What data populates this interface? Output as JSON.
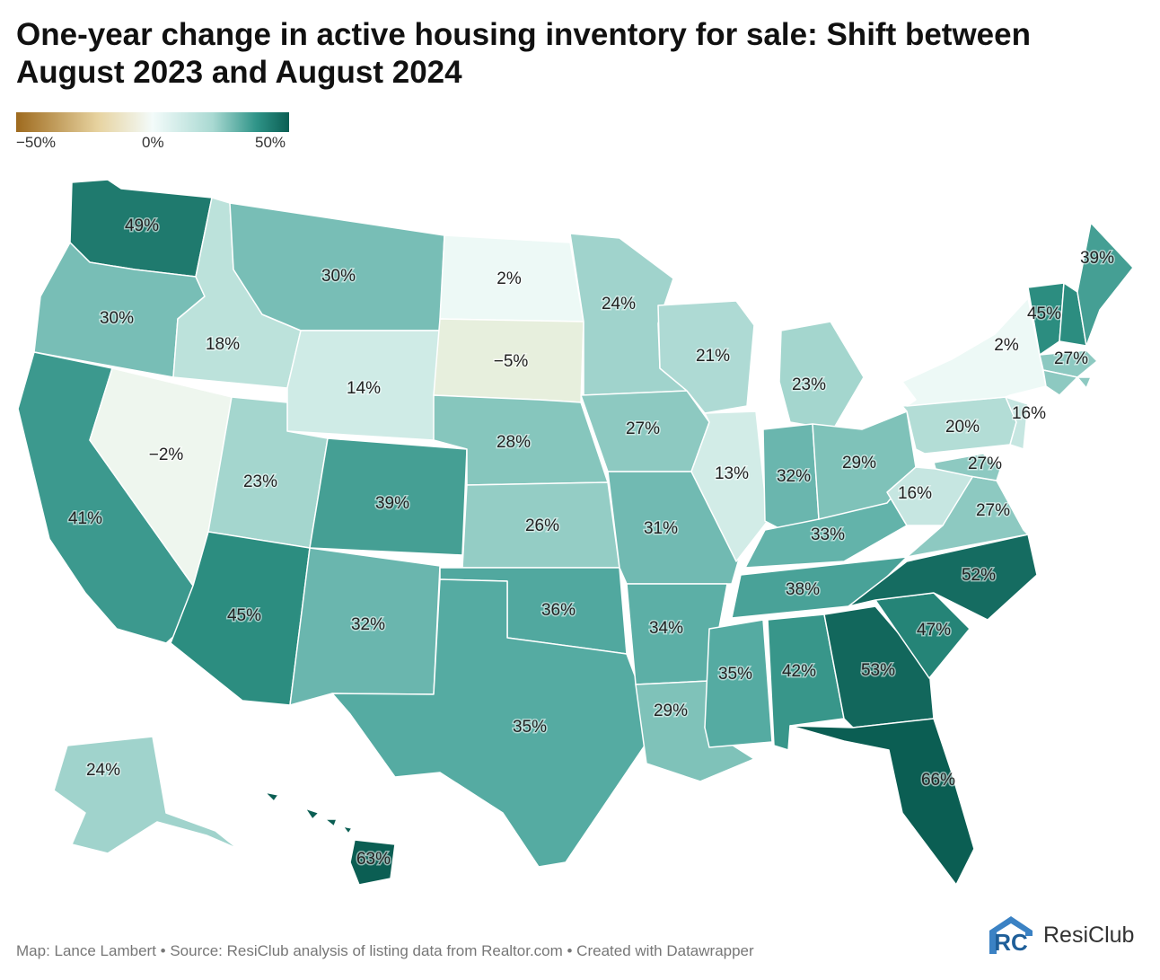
{
  "title": "One-year change in active housing inventory for sale: Shift between August 2023 and August 2024",
  "legend": {
    "min_label": "−50%",
    "mid_label": "0%",
    "max_label": "50%",
    "scale_colors": [
      "#9e6a1e",
      "#e7d3a0",
      "#f3fbfa",
      "#a9d9d2",
      "#2f9488",
      "#0b5e53"
    ]
  },
  "states": [
    {
      "code": "WA",
      "label": "49%"
    },
    {
      "code": "OR",
      "label": "30%"
    },
    {
      "code": "CA",
      "label": "41%"
    },
    {
      "code": "NV",
      "label": "−2%"
    },
    {
      "code": "ID",
      "label": "18%"
    },
    {
      "code": "MT",
      "label": "30%"
    },
    {
      "code": "WY",
      "label": "14%"
    },
    {
      "code": "UT",
      "label": "23%"
    },
    {
      "code": "AZ",
      "label": "45%"
    },
    {
      "code": "CO",
      "label": "39%"
    },
    {
      "code": "NM",
      "label": "32%"
    },
    {
      "code": "ND",
      "label": "2%"
    },
    {
      "code": "SD",
      "label": "−5%"
    },
    {
      "code": "NE",
      "label": "28%"
    },
    {
      "code": "KS",
      "label": "26%"
    },
    {
      "code": "OK",
      "label": "36%"
    },
    {
      "code": "TX",
      "label": "35%"
    },
    {
      "code": "MN",
      "label": "24%"
    },
    {
      "code": "IA",
      "label": "27%"
    },
    {
      "code": "MO",
      "label": "31%"
    },
    {
      "code": "AR",
      "label": "34%"
    },
    {
      "code": "LA",
      "label": "29%"
    },
    {
      "code": "WI",
      "label": "21%"
    },
    {
      "code": "IL",
      "label": "13%"
    },
    {
      "code": "MS",
      "label": "35%"
    },
    {
      "code": "MI",
      "label": "23%"
    },
    {
      "code": "IN",
      "label": "32%"
    },
    {
      "code": "KY",
      "label": "33%"
    },
    {
      "code": "TN",
      "label": "38%"
    },
    {
      "code": "AL",
      "label": "42%"
    },
    {
      "code": "OH",
      "label": "29%"
    },
    {
      "code": "GA",
      "label": "53%"
    },
    {
      "code": "FL",
      "label": "66%"
    },
    {
      "code": "SC",
      "label": "47%"
    },
    {
      "code": "NC",
      "label": "52%"
    },
    {
      "code": "VA",
      "label": "27%"
    },
    {
      "code": "WV",
      "label": "16%"
    },
    {
      "code": "MD",
      "label": "27%"
    },
    {
      "code": "PA",
      "label": "20%"
    },
    {
      "code": "NY",
      "label": "2%"
    },
    {
      "code": "NJ",
      "label": "16%"
    },
    {
      "code": "VT",
      "label": "45%"
    },
    {
      "code": "MA",
      "label": "27%"
    },
    {
      "code": "ME",
      "label": "39%"
    },
    {
      "code": "AK",
      "label": "24%"
    },
    {
      "code": "HI",
      "label": "63%"
    }
  ],
  "footer": "Map: Lance Lambert • Source: ResiClub analysis of listing data from Realtor.com • Created with Datawrapper",
  "brand": {
    "logo_letters": "RC",
    "name": "ResiClub"
  }
}
